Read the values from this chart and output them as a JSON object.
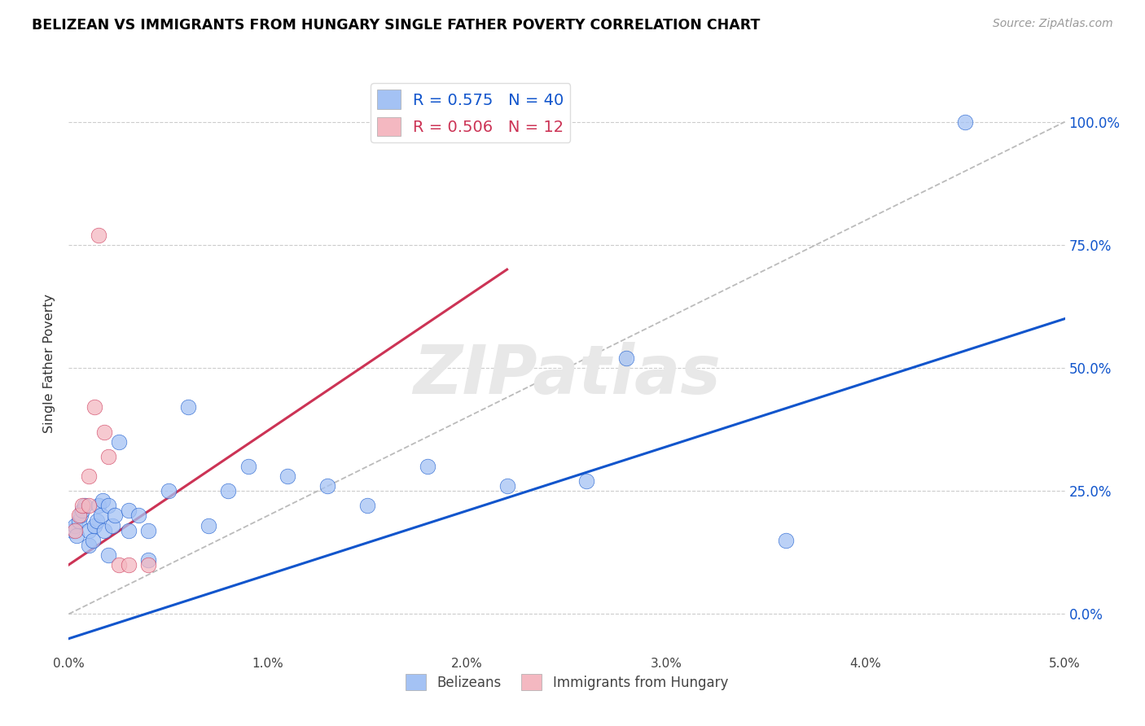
{
  "title": "BELIZEAN VS IMMIGRANTS FROM HUNGARY SINGLE FATHER POVERTY CORRELATION CHART",
  "source": "Source: ZipAtlas.com",
  "xlabel_ticks": [
    "0.0%",
    "1.0%",
    "2.0%",
    "3.0%",
    "4.0%",
    "5.0%"
  ],
  "ylabel_ticks_right": [
    "0.0%",
    "25.0%",
    "50.0%",
    "75.0%",
    "100.0%"
  ],
  "ylabel_label": "Single Father Poverty",
  "legend_label1": "Belizeans",
  "legend_label2": "Immigrants from Hungary",
  "R1": 0.575,
  "N1": 40,
  "R2": 0.506,
  "N2": 12,
  "color1": "#a4c2f4",
  "color2": "#f4b8c1",
  "trendline1_color": "#1155cc",
  "trendline2_color": "#cc3355",
  "refline_color": "#bbbbbb",
  "watermark": "ZIPatlas",
  "xlim": [
    0.0,
    0.05
  ],
  "ylim": [
    -0.08,
    1.1
  ],
  "ytick_vals": [
    0.0,
    0.25,
    0.5,
    0.75,
    1.0
  ],
  "blue_x": [
    0.0002,
    0.0003,
    0.0004,
    0.0005,
    0.0006,
    0.0007,
    0.0008,
    0.001,
    0.001,
    0.0012,
    0.0013,
    0.0014,
    0.0015,
    0.0016,
    0.0017,
    0.0018,
    0.002,
    0.002,
    0.0022,
    0.0023,
    0.0025,
    0.003,
    0.003,
    0.0035,
    0.004,
    0.004,
    0.005,
    0.006,
    0.007,
    0.008,
    0.009,
    0.011,
    0.013,
    0.015,
    0.018,
    0.022,
    0.026,
    0.028,
    0.036,
    0.045
  ],
  "blue_y": [
    0.17,
    0.18,
    0.16,
    0.19,
    0.2,
    0.21,
    0.22,
    0.14,
    0.17,
    0.15,
    0.18,
    0.19,
    0.22,
    0.2,
    0.23,
    0.17,
    0.12,
    0.22,
    0.18,
    0.2,
    0.35,
    0.17,
    0.21,
    0.2,
    0.11,
    0.17,
    0.25,
    0.42,
    0.18,
    0.25,
    0.3,
    0.28,
    0.26,
    0.22,
    0.3,
    0.26,
    0.27,
    0.52,
    0.15,
    1.0
  ],
  "pink_x": [
    0.0003,
    0.0005,
    0.0007,
    0.001,
    0.001,
    0.0013,
    0.0015,
    0.0018,
    0.002,
    0.0025,
    0.003,
    0.004
  ],
  "pink_y": [
    0.17,
    0.2,
    0.22,
    0.22,
    0.28,
    0.42,
    0.77,
    0.37,
    0.32,
    0.1,
    0.1,
    0.1
  ],
  "blue_trendline_x": [
    0.0,
    0.05
  ],
  "blue_trendline_y": [
    -0.05,
    0.6
  ],
  "pink_trendline_x": [
    0.0,
    0.022
  ],
  "pink_trendline_y": [
    0.1,
    0.7
  ]
}
